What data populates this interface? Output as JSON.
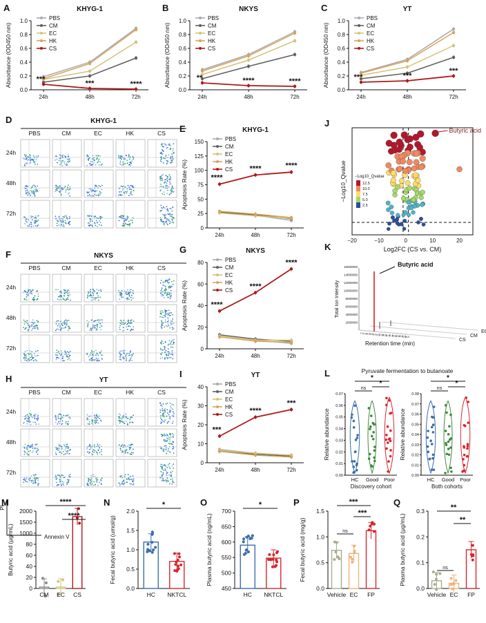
{
  "colors": {
    "PBS": "#a9a9a9",
    "CM": "#5e5e5e",
    "EC": "#d4c27a",
    "HK": "#d9a35c",
    "CS": "#b01818",
    "HC": "#3a6eab",
    "NKTCL": "#d7262c",
    "Good": "#3e8a3a",
    "Poor": "#d7262c",
    "Vehicle": "#a8ad8e",
    "EC2": "#f0b27a",
    "FP": "#d7262c"
  },
  "groups_ab": [
    "PBS",
    "CM",
    "EC",
    "HK",
    "CS"
  ],
  "timepoints": [
    "24h",
    "48h",
    "72h"
  ],
  "flow": {
    "x_label": "Annexin V",
    "y_label": "PI",
    "panels": [
      {
        "letter": "D",
        "title": "KHYG-1"
      },
      {
        "letter": "F",
        "title": "NKYS"
      },
      {
        "letter": "H",
        "title": "YT"
      }
    ]
  },
  "panel_J": {
    "letter": "J",
    "xlabel": "Log2FC (CS vs. CM)",
    "ylabel": "−Log10_Qvalue",
    "legend_title": "−Log10_Qvalue",
    "legend_ticks": [
      "12.5",
      "10.0",
      "7.5",
      "5.0",
      "2.5"
    ],
    "annotation": "Butyric acid",
    "xticks": [
      "−20",
      "−10",
      "0",
      "10",
      "20"
    ]
  },
  "panel_K": {
    "letter": "K",
    "xlabel": "Retention time (min)",
    "ylabel": "Total Ion Intensity",
    "annotation": "Butyric acid",
    "series": [
      "EC",
      "CM",
      "CS"
    ],
    "yticks": [
      "16000000",
      "14000000",
      "12000000",
      "10000000",
      "8000000",
      "6000000",
      "4000000",
      "2000000"
    ],
    "xticks": [
      "7.0",
      "7.5",
      "8.0",
      "8.5",
      "9.0",
      "9.5",
      "10.0",
      "10.5",
      "11.0",
      "11.5",
      "12.0",
      "12.5",
      "13.0",
      "13.5",
      "14.0"
    ]
  },
  "panel_L": {
    "letter": "L",
    "title": "Pyruvate fermentation to butanoate",
    "ylabel": "Relative abundance",
    "categories": [
      "HC",
      "Good",
      "Poor"
    ],
    "left": {
      "subtitle": "Discovery cohort",
      "yticks": [
        "0.00",
        "0.01",
        "0.02",
        "0.03",
        "0.04",
        "0.05",
        "0.06",
        "0.07"
      ],
      "sig": [
        "ns",
        "*",
        "*"
      ]
    },
    "right": {
      "subtitle": "Both cohorts",
      "yticks": [
        "0.00",
        "0.01",
        "0.02",
        "0.03",
        "0.04",
        "0.05",
        "0.06",
        "0.07",
        "0.08"
      ],
      "sig": [
        "ns",
        "*",
        "*"
      ]
    }
  },
  "chart_data": [
    {
      "panel": "A",
      "type": "line",
      "title": "KHYG-1",
      "ylabel": "Absorbance (OD450 nm)",
      "x": [
        "24h",
        "48h",
        "72h"
      ],
      "ylim": [
        0,
        1.0
      ],
      "yticks": [
        "0.0",
        "0.2",
        "0.4",
        "0.6",
        "0.8",
        "1.0"
      ],
      "series": [
        {
          "name": "PBS",
          "values": [
            0.19,
            0.4,
            0.89
          ]
        },
        {
          "name": "CM",
          "values": [
            0.11,
            0.2,
            0.46
          ]
        },
        {
          "name": "EC",
          "values": [
            0.15,
            0.27,
            0.69
          ]
        },
        {
          "name": "HK",
          "values": [
            0.16,
            0.38,
            0.87
          ]
        },
        {
          "name": "CS",
          "values": [
            0.08,
            0.02,
            0.01
          ]
        }
      ],
      "sig": [
        "***",
        "***",
        "****"
      ]
    },
    {
      "panel": "B",
      "type": "line",
      "title": "NKYS",
      "ylabel": "Absorbance (OD450 nm)",
      "x": [
        "24h",
        "48h",
        "72h"
      ],
      "ylim": [
        0,
        1.0
      ],
      "yticks": [
        "0.0",
        "0.2",
        "0.4",
        "0.6",
        "0.8",
        "1.0"
      ],
      "series": [
        {
          "name": "PBS",
          "values": [
            0.29,
            0.51,
            0.84
          ]
        },
        {
          "name": "CM",
          "values": [
            0.16,
            0.34,
            0.51
          ]
        },
        {
          "name": "EC",
          "values": [
            0.22,
            0.43,
            0.71
          ]
        },
        {
          "name": "HK",
          "values": [
            0.27,
            0.49,
            0.82
          ]
        },
        {
          "name": "CS",
          "values": [
            0.1,
            0.06,
            0.05
          ]
        }
      ],
      "sig": [
        "**",
        "****",
        "****"
      ]
    },
    {
      "panel": "C",
      "type": "line",
      "title": "YT",
      "ylabel": "Absorbance (OD450 nm)",
      "x": [
        "24h",
        "48h",
        "72h"
      ],
      "ylim": [
        0,
        1.0
      ],
      "yticks": [
        "0.0",
        "0.2",
        "0.4",
        "0.6",
        "0.8",
        "1.0"
      ],
      "series": [
        {
          "name": "PBS",
          "values": [
            0.25,
            0.44,
            0.88
          ]
        },
        {
          "name": "CM",
          "values": [
            0.16,
            0.24,
            0.47
          ]
        },
        {
          "name": "EC",
          "values": [
            0.21,
            0.33,
            0.64
          ]
        },
        {
          "name": "HK",
          "values": [
            0.24,
            0.42,
            0.83
          ]
        },
        {
          "name": "CS",
          "values": [
            0.11,
            0.13,
            0.2
          ]
        }
      ],
      "sig": [
        "***",
        "***",
        "***"
      ]
    },
    {
      "panel": "E",
      "type": "line",
      "title": "KHYG-1",
      "ylabel": "Apoptosis Rate (%)",
      "x": [
        "24h",
        "48h",
        "72h"
      ],
      "ylim": [
        0,
        150
      ],
      "yticks": [
        "0",
        "25",
        "50",
        "75",
        "100",
        "125",
        "150"
      ],
      "series": [
        {
          "name": "PBS",
          "values": [
            28,
            22,
            13
          ]
        },
        {
          "name": "CM",
          "values": [
            27,
            23,
            16
          ]
        },
        {
          "name": "EC",
          "values": [
            26,
            21,
            17
          ]
        },
        {
          "name": "HK",
          "values": [
            29,
            24,
            18
          ]
        },
        {
          "name": "CS",
          "values": [
            76,
            92,
            97
          ]
        }
      ],
      "sig": [
        "****",
        "****",
        "****"
      ]
    },
    {
      "panel": "G",
      "type": "line",
      "title": "NKYS",
      "ylabel": "Apoptosis Rate (%)",
      "x": [
        "24h",
        "48h",
        "72h"
      ],
      "ylim": [
        0,
        80
      ],
      "yticks": [
        "0",
        "20",
        "40",
        "60",
        "80"
      ],
      "series": [
        {
          "name": "PBS",
          "values": [
            12,
            8,
            5
          ]
        },
        {
          "name": "CM",
          "values": [
            13,
            9,
            7
          ]
        },
        {
          "name": "EC",
          "values": [
            12,
            8,
            8
          ]
        },
        {
          "name": "HK",
          "values": [
            11,
            7,
            6
          ]
        },
        {
          "name": "CS",
          "values": [
            35,
            52,
            74
          ]
        }
      ],
      "sig": [
        "****",
        "****",
        "****"
      ]
    },
    {
      "panel": "I",
      "type": "line",
      "title": "YT",
      "ylabel": "Apoptosis Rate (%)",
      "x": [
        "24h",
        "48h",
        "72h"
      ],
      "ylim": [
        0,
        40
      ],
      "yticks": [
        "0",
        "10",
        "20",
        "30",
        "40"
      ],
      "series": [
        {
          "name": "PBS",
          "values": [
            7,
            5,
            4
          ]
        },
        {
          "name": "CM",
          "values": [
            6,
            4.5,
            3.5
          ]
        },
        {
          "name": "EC",
          "values": [
            6.5,
            5,
            4
          ]
        },
        {
          "name": "HK",
          "values": [
            6,
            4,
            3
          ]
        },
        {
          "name": "CS",
          "values": [
            14,
            24,
            28
          ]
        }
      ],
      "sig": [
        "***",
        "****",
        "***"
      ]
    },
    {
      "panel": "M",
      "type": "bar",
      "ylabel": "Butyric acid (μg/mL)",
      "categories": [
        "CM",
        "EC",
        "CS"
      ],
      "values": [
        2,
        3,
        1450
      ],
      "ylim": [
        0,
        2000
      ],
      "yticks": [
        "0",
        "20",
        "40",
        "60",
        "80",
        "1000",
        "1500",
        "2000"
      ],
      "sig": [
        "****",
        "****"
      ]
    },
    {
      "panel": "N",
      "type": "bar",
      "ylabel": "Fecal butyric acid (umol/g)",
      "categories": [
        "HC",
        "NKTCL"
      ],
      "values": [
        1.2,
        0.7
      ],
      "ylim": [
        0,
        2.0
      ],
      "yticks": [
        "0.0",
        "0.5",
        "1.0",
        "1.5",
        "2.0"
      ],
      "sig": [
        "*"
      ]
    },
    {
      "panel": "O",
      "type": "bar",
      "ylabel": "Plasma butyric acid (ng/mL)",
      "categories": [
        "HC",
        "NKTCL"
      ],
      "values": [
        590,
        548
      ],
      "ylim": [
        450,
        700
      ],
      "yticks": [
        "450",
        "500",
        "550",
        "600",
        "650",
        "700"
      ],
      "sig": [
        "*"
      ]
    },
    {
      "panel": "P",
      "type": "bar",
      "ylabel": "Fecal butyric acid (mg/g)",
      "categories": [
        "Vehicle",
        "EC",
        "FP"
      ],
      "values": [
        0.74,
        0.68,
        1.12
      ],
      "ylim": [
        0,
        1.5
      ],
      "yticks": [
        "0.0",
        "0.5",
        "1.0",
        "1.5"
      ],
      "sig": [
        "***",
        "ns",
        "***"
      ]
    },
    {
      "panel": "Q",
      "type": "bar",
      "ylabel": "Plasma butyric acid (μg/mL)",
      "categories": [
        "Vehicle",
        "EC",
        "FP"
      ],
      "values": [
        0.03,
        0.02,
        0.15
      ],
      "ylim": [
        0,
        0.3
      ],
      "yticks": [
        "0.0",
        "0.1",
        "0.2",
        "0.3"
      ],
      "sig": [
        "**",
        "ns",
        "**"
      ]
    }
  ]
}
